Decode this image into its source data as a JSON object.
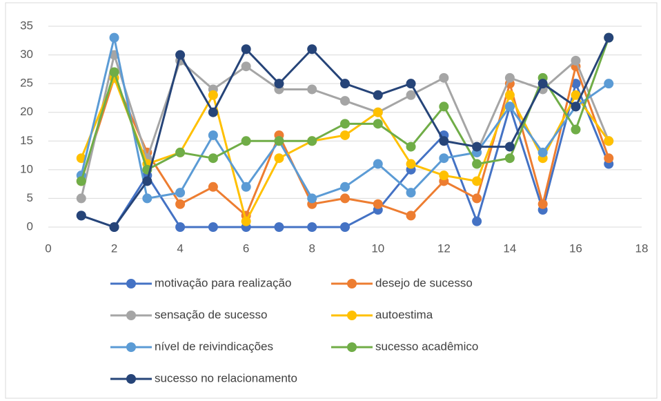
{
  "chart_data": {
    "type": "line",
    "x": [
      1,
      2,
      3,
      4,
      5,
      6,
      7,
      8,
      9,
      10,
      11,
      12,
      13,
      14,
      15,
      16,
      17
    ],
    "series": [
      {
        "name": "motivação para realização",
        "color": "#4472c4",
        "values": [
          2,
          0,
          9,
          0,
          0,
          0,
          0,
          0,
          0,
          3,
          10,
          16,
          1,
          21,
          3,
          25,
          11
        ]
      },
      {
        "name": "desejo de sucesso",
        "color": "#ed7d31",
        "values": [
          8,
          26,
          13,
          4,
          7,
          2,
          16,
          4,
          5,
          4,
          2,
          8,
          5,
          25,
          4,
          28,
          12
        ]
      },
      {
        "name": "sensação de sucesso",
        "color": "#a5a5a5",
        "values": [
          5,
          30,
          12,
          29,
          24,
          28,
          24,
          24,
          22,
          20,
          23,
          26,
          13,
          26,
          24,
          29,
          15
        ]
      },
      {
        "name": "autoestima",
        "color": "#ffc000",
        "values": [
          12,
          26,
          11,
          13,
          23,
          1,
          12,
          15,
          16,
          20,
          11,
          9,
          8,
          23,
          12,
          23,
          15
        ]
      },
      {
        "name": "nível de reivindicações",
        "color": "#5b9bd5",
        "values": [
          9,
          33,
          5,
          6,
          16,
          7,
          15,
          5,
          7,
          11,
          6,
          12,
          13,
          21,
          13,
          21,
          25
        ]
      },
      {
        "name": "sucesso acadêmico",
        "color": "#70ad47",
        "values": [
          8,
          27,
          10,
          13,
          12,
          15,
          15,
          15,
          18,
          18,
          14,
          21,
          11,
          12,
          26,
          17,
          33
        ]
      },
      {
        "name": "sucesso no relacionamento",
        "color": "#264478",
        "values": [
          2,
          0,
          8,
          30,
          20,
          31,
          25,
          31,
          25,
          23,
          25,
          15,
          14,
          14,
          25,
          21,
          33
        ]
      }
    ],
    "xlim": [
      0,
      18
    ],
    "xticks": [
      0,
      2,
      4,
      6,
      8,
      10,
      12,
      14,
      16,
      18
    ],
    "ylim": [
      0,
      35
    ],
    "yticks": [
      0,
      5,
      10,
      15,
      20,
      25,
      30,
      35
    ],
    "grid": true,
    "legend": "bottom"
  }
}
